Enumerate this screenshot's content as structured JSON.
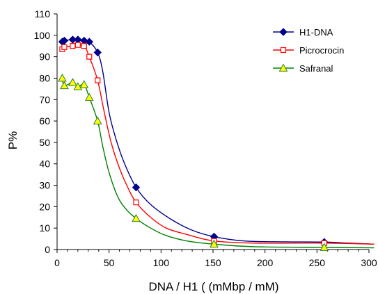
{
  "chart_data": {
    "type": "line",
    "title": "",
    "xlabel": "DNA / H1 ( (mMbp / mM)",
    "ylabel": "P%",
    "xlim": [
      0,
      300
    ],
    "ylim": [
      0,
      110
    ],
    "xticks": [
      "0",
      "50",
      "100",
      "150",
      "200",
      "250",
      "300"
    ],
    "yticks": [
      "0",
      "10",
      "20",
      "30",
      "40",
      "50",
      "60",
      "70",
      "80",
      "90",
      "100",
      "110"
    ],
    "grid": false,
    "legend_position": "top-right",
    "series": [
      {
        "name": "H1-DNA",
        "color": "#00008B",
        "marker": "diamond",
        "points": [
          [
            5,
            97
          ],
          [
            7,
            97.5
          ],
          [
            15,
            98
          ],
          [
            20,
            98
          ],
          [
            26,
            97.5
          ],
          [
            31,
            97
          ],
          [
            39,
            92
          ],
          [
            76,
            29
          ],
          [
            151,
            6
          ],
          [
            257,
            3.5
          ]
        ],
        "curve": [
          [
            5,
            97
          ],
          [
            7,
            97.5
          ],
          [
            15,
            98
          ],
          [
            20,
            98
          ],
          [
            26,
            97.5
          ],
          [
            31,
            97
          ],
          [
            39,
            92
          ],
          [
            44,
            83
          ],
          [
            50,
            64
          ],
          [
            57,
            51
          ],
          [
            65,
            40
          ],
          [
            76,
            29
          ],
          [
            90,
            21
          ],
          [
            110,
            14
          ],
          [
            130,
            9
          ],
          [
            151,
            6
          ],
          [
            180,
            4
          ],
          [
            220,
            3.6
          ],
          [
            257,
            3.5
          ],
          [
            280,
            3
          ],
          [
            305,
            2.5
          ]
        ]
      },
      {
        "name": "Picrocrocin",
        "color": "#FF0000",
        "marker": "square",
        "points": [
          [
            5,
            93.5
          ],
          [
            7,
            94.5
          ],
          [
            15,
            95
          ],
          [
            20,
            95.5
          ],
          [
            26,
            95
          ],
          [
            31,
            90
          ],
          [
            39,
            79
          ],
          [
            76,
            22
          ],
          [
            151,
            4
          ],
          [
            257,
            3
          ]
        ],
        "curve": [
          [
            5,
            93.5
          ],
          [
            7,
            94.5
          ],
          [
            15,
            95
          ],
          [
            20,
            95.5
          ],
          [
            26,
            95
          ],
          [
            31,
            90
          ],
          [
            39,
            79
          ],
          [
            45,
            65
          ],
          [
            52,
            50
          ],
          [
            60,
            38
          ],
          [
            68,
            29
          ],
          [
            76,
            22
          ],
          [
            90,
            15
          ],
          [
            105,
            10
          ],
          [
            125,
            7
          ],
          [
            151,
            4
          ],
          [
            190,
            3
          ],
          [
            257,
            3
          ],
          [
            305,
            2.5
          ]
        ]
      },
      {
        "name": "Safranal",
        "color": "#008000",
        "marker": "triangle",
        "points": [
          [
            5,
            80
          ],
          [
            7,
            76.5
          ],
          [
            15,
            78
          ],
          [
            20,
            76
          ],
          [
            26,
            77
          ],
          [
            31,
            71
          ],
          [
            39,
            60
          ],
          [
            76,
            14.5
          ],
          [
            151,
            2.5
          ],
          [
            257,
            1
          ]
        ],
        "curve": [
          [
            5,
            80
          ],
          [
            7,
            76.5
          ],
          [
            15,
            78
          ],
          [
            20,
            76
          ],
          [
            26,
            77
          ],
          [
            31,
            71
          ],
          [
            39,
            60
          ],
          [
            44,
            48
          ],
          [
            50,
            36
          ],
          [
            58,
            25
          ],
          [
            66,
            19
          ],
          [
            76,
            14.5
          ],
          [
            90,
            10
          ],
          [
            105,
            6.5
          ],
          [
            125,
            4
          ],
          [
            151,
            2.5
          ],
          [
            190,
            1.3
          ],
          [
            257,
            1
          ],
          [
            305,
            0.8
          ]
        ]
      }
    ]
  }
}
